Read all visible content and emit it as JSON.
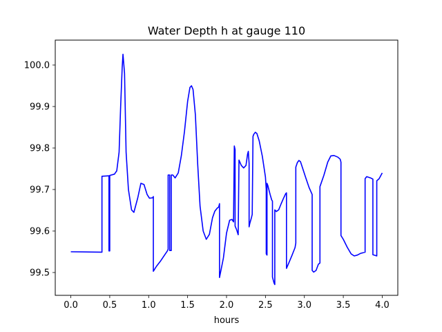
{
  "chart_data": {
    "type": "line",
    "title": "Water Depth h at gauge 110",
    "xlabel": "hours",
    "ylabel": "",
    "xlim": [
      -0.2,
      4.2
    ],
    "ylim": [
      99.445,
      100.06
    ],
    "xticks": [
      0.0,
      0.5,
      1.0,
      1.5,
      2.0,
      2.5,
      3.0,
      3.5,
      4.0
    ],
    "xtick_labels": [
      "0.0",
      "0.5",
      "1.0",
      "1.5",
      "2.0",
      "2.5",
      "3.0",
      "3.5",
      "4.0"
    ],
    "yticks": [
      99.5,
      99.6,
      99.7,
      99.8,
      99.9,
      100.0
    ],
    "ytick_labels": [
      "99.5",
      "99.6",
      "99.7",
      "99.8",
      "99.9",
      "100.0"
    ],
    "grid": false,
    "series": [
      {
        "color": "#0000ff",
        "x": [
          0.0,
          0.4,
          0.4,
          0.49,
          0.49,
          0.5,
          0.5,
          0.56,
          0.59,
          0.62,
          0.64,
          0.66,
          0.67,
          0.69,
          0.71,
          0.74,
          0.78,
          0.81,
          0.86,
          0.9,
          0.94,
          0.98,
          1.01,
          1.05,
          1.06,
          1.06,
          1.1,
          1.15,
          1.2,
          1.24,
          1.25,
          1.25,
          1.27,
          1.27,
          1.29,
          1.29,
          1.31,
          1.34,
          1.38,
          1.42,
          1.46,
          1.5,
          1.53,
          1.55,
          1.57,
          1.6,
          1.63,
          1.66,
          1.7,
          1.74,
          1.78,
          1.82,
          1.85,
          1.88,
          1.9,
          1.91,
          1.91,
          1.96,
          2.0,
          2.04,
          2.07,
          2.09,
          2.1,
          2.11,
          2.11,
          2.13,
          2.15,
          2.16,
          2.19,
          2.22,
          2.25,
          2.27,
          2.28,
          2.29,
          2.29,
          2.3,
          2.32,
          2.33,
          2.34,
          2.35,
          2.37,
          2.39,
          2.42,
          2.46,
          2.5,
          2.51,
          2.51,
          2.52,
          2.52,
          2.53,
          2.56,
          2.58,
          2.59,
          2.59,
          2.61,
          2.62,
          2.62,
          2.64,
          2.67,
          2.7,
          2.73,
          2.76,
          2.77,
          2.77,
          2.8,
          2.84,
          2.88,
          2.89,
          2.89,
          2.91,
          2.93,
          2.95,
          2.98,
          3.02,
          3.06,
          3.1,
          3.1,
          3.12,
          3.15,
          3.18,
          3.2,
          3.2,
          3.25,
          3.3,
          3.34,
          3.38,
          3.43,
          3.46,
          3.47,
          3.47,
          3.5,
          3.55,
          3.6,
          3.64,
          3.68,
          3.72,
          3.78,
          3.78,
          3.8,
          3.85,
          3.88,
          3.88,
          3.93,
          3.93,
          3.96,
          4.0
        ],
        "y": [
          99.55,
          99.549,
          99.732,
          99.733,
          99.552,
          99.552,
          99.734,
          99.737,
          99.745,
          99.79,
          99.9,
          99.995,
          100.026,
          99.98,
          99.79,
          99.7,
          99.651,
          99.645,
          99.68,
          99.715,
          99.712,
          99.688,
          99.679,
          99.68,
          99.683,
          99.503,
          99.515,
          99.527,
          99.541,
          99.552,
          99.556,
          99.735,
          99.735,
          99.553,
          99.553,
          99.735,
          99.735,
          99.728,
          99.74,
          99.782,
          99.84,
          99.912,
          99.946,
          99.95,
          99.941,
          99.88,
          99.76,
          99.66,
          99.6,
          99.58,
          99.592,
          99.632,
          99.648,
          99.655,
          99.658,
          99.666,
          99.488,
          99.535,
          99.595,
          99.626,
          99.628,
          99.622,
          99.805,
          99.796,
          99.612,
          99.603,
          99.591,
          99.771,
          99.758,
          99.752,
          99.758,
          99.785,
          99.792,
          99.763,
          99.61,
          99.619,
          99.632,
          99.64,
          99.828,
          99.833,
          99.838,
          99.835,
          99.817,
          99.78,
          99.73,
          99.7,
          99.545,
          99.542,
          99.715,
          99.71,
          99.688,
          99.675,
          99.672,
          99.489,
          99.475,
          99.471,
          99.651,
          99.647,
          99.651,
          99.665,
          99.678,
          99.69,
          99.692,
          99.51,
          99.523,
          99.541,
          99.56,
          99.571,
          99.754,
          99.765,
          99.77,
          99.767,
          99.75,
          99.727,
          99.705,
          99.688,
          99.505,
          99.501,
          99.505,
          99.52,
          99.523,
          99.707,
          99.734,
          99.766,
          99.781,
          99.782,
          99.778,
          99.773,
          99.766,
          99.589,
          99.58,
          99.561,
          99.545,
          99.54,
          99.542,
          99.546,
          99.549,
          99.726,
          99.731,
          99.728,
          99.725,
          99.543,
          99.54,
          99.721,
          99.726,
          99.74
        ]
      }
    ]
  }
}
